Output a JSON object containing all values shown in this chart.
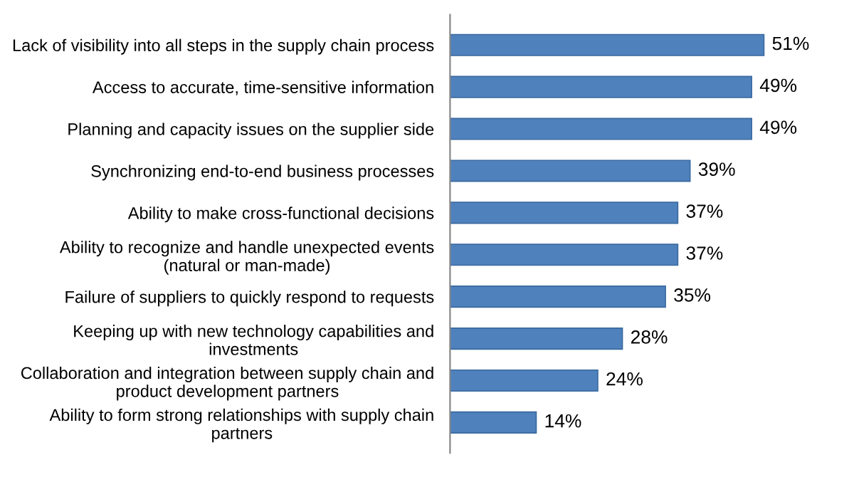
{
  "chart_data": {
    "type": "bar",
    "orientation": "horizontal",
    "categories": [
      "Lack of visibility into all steps in the supply chain process",
      "Access to accurate, time-sensitive information",
      "Planning and capacity issues on the supplier side",
      "Synchronizing end-to-end business processes",
      "Ability to make cross-functional decisions",
      "Ability to recognize and handle unexpected events\n(natural or man-made)",
      "Failure of suppliers to quickly respond to requests",
      "Keeping up with new technology capabilities and\ninvestments",
      "Collaboration and integration between supply chain and\nproduct development partners",
      "Ability to form strong relationships with supply chain\npartners"
    ],
    "values": [
      51,
      49,
      49,
      39,
      37,
      37,
      35,
      28,
      24,
      14
    ],
    "value_labels": [
      "51%",
      "49%",
      "49%",
      "39%",
      "37%",
      "37%",
      "35%",
      "28%",
      "24%",
      "14%"
    ],
    "color": "#4f81bd",
    "grid": false,
    "legend": false
  }
}
